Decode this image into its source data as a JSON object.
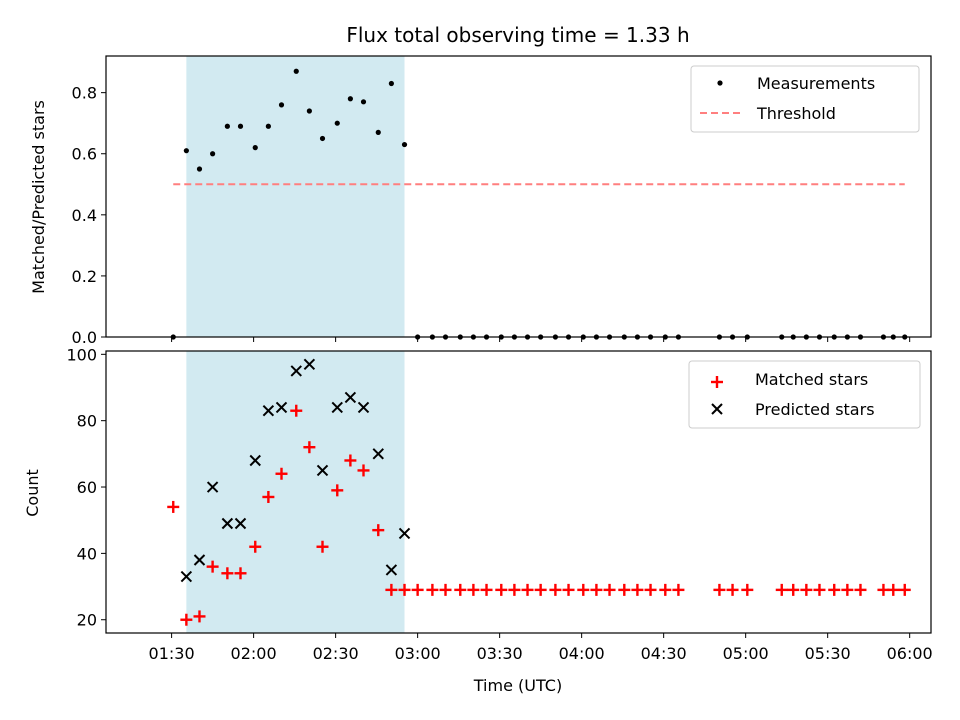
{
  "chart_data": {
    "type": "scatter",
    "title": "Flux total observing time = 1.33 h",
    "xlabel": "Time (UTC)",
    "xlim_hours": [
      1.1,
      6.13
    ],
    "x_ticks": [
      {
        "h": 1.5,
        "label": "01:30"
      },
      {
        "h": 2.0,
        "label": "02:00"
      },
      {
        "h": 2.5,
        "label": "02:30"
      },
      {
        "h": 3.0,
        "label": "03:00"
      },
      {
        "h": 3.5,
        "label": "03:30"
      },
      {
        "h": 4.0,
        "label": "04:00"
      },
      {
        "h": 4.5,
        "label": "04:30"
      },
      {
        "h": 5.0,
        "label": "05:00"
      },
      {
        "h": 5.5,
        "label": "05:30"
      },
      {
        "h": 6.0,
        "label": "06:00"
      }
    ],
    "shaded_span_hours": [
      1.59,
      2.92
    ],
    "shade_color": "#add8e6",
    "top": {
      "ylabel": "Matched/Predicted stars",
      "ylim": [
        0,
        0.92
      ],
      "yticks": [
        0.0,
        0.2,
        0.4,
        0.6,
        0.8
      ],
      "ytick_labels": [
        "0.0",
        "0.2",
        "0.4",
        "0.6",
        "0.8"
      ],
      "legend": {
        "location": "upper right",
        "entries": [
          "Measurements",
          "Threshold"
        ]
      },
      "measurements": {
        "name": "Measurements",
        "color": "#000000",
        "x": [
          1.51,
          1.59,
          1.67,
          1.75,
          1.84,
          1.92,
          2.01,
          2.09,
          2.17,
          2.26,
          2.34,
          2.42,
          2.51,
          2.59,
          2.67,
          2.76,
          2.84,
          2.92,
          3.0,
          3.09,
          3.17,
          3.26,
          3.34,
          3.42,
          3.51,
          3.59,
          3.67,
          3.75,
          3.84,
          3.92,
          4.01,
          4.09,
          4.17,
          4.26,
          4.34,
          4.42,
          4.51,
          4.59,
          4.84,
          4.92,
          5.01,
          5.22,
          5.29,
          5.37,
          5.45,
          5.54,
          5.62,
          5.7,
          5.84,
          5.9,
          5.97
        ],
        "y": [
          0.0,
          0.61,
          0.55,
          0.6,
          0.69,
          0.69,
          0.62,
          0.69,
          0.76,
          0.87,
          0.74,
          0.65,
          0.7,
          0.78,
          0.77,
          0.67,
          0.83,
          0.63,
          0.0,
          0.0,
          0.0,
          0.0,
          0.0,
          0.0,
          0.0,
          0.0,
          0.0,
          0.0,
          0.0,
          0.0,
          0.0,
          0.0,
          0.0,
          0.0,
          0.0,
          0.0,
          0.0,
          0.0,
          0.0,
          0.0,
          0.0,
          0.0,
          0.0,
          0.0,
          0.0,
          0.0,
          0.0,
          0.0,
          0.0,
          0.0,
          0.0
        ]
      },
      "threshold": {
        "name": "Threshold",
        "color": "#ff7f7f",
        "value": 0.5,
        "x_range": [
          1.51,
          5.97
        ]
      }
    },
    "bottom": {
      "ylabel": "Count",
      "ylim": [
        16,
        101
      ],
      "yticks": [
        20,
        40,
        60,
        80,
        100
      ],
      "ytick_labels": [
        "20",
        "40",
        "60",
        "80",
        "100"
      ],
      "legend": {
        "location": "upper right",
        "entries": [
          "Matched stars",
          "Predicted stars"
        ]
      },
      "matched": {
        "name": "Matched stars",
        "color": "#ff0000",
        "marker": "+",
        "x": [
          1.51,
          1.59,
          1.67,
          1.75,
          1.84,
          1.92,
          2.01,
          2.09,
          2.17,
          2.26,
          2.34,
          2.42,
          2.51,
          2.59,
          2.67,
          2.76,
          2.84,
          2.92,
          3.0,
          3.09,
          3.17,
          3.26,
          3.34,
          3.42,
          3.51,
          3.59,
          3.67,
          3.75,
          3.84,
          3.92,
          4.01,
          4.09,
          4.17,
          4.26,
          4.34,
          4.42,
          4.51,
          4.59,
          4.84,
          4.92,
          5.01,
          5.22,
          5.29,
          5.37,
          5.45,
          5.54,
          5.62,
          5.7,
          5.84,
          5.9,
          5.97
        ],
        "y": [
          54,
          20,
          21,
          36,
          34,
          34,
          42,
          57,
          64,
          83,
          72,
          42,
          59,
          68,
          65,
          47,
          29,
          29,
          29,
          29,
          29,
          29,
          29,
          29,
          29,
          29,
          29,
          29,
          29,
          29,
          29,
          29,
          29,
          29,
          29,
          29,
          29,
          29,
          29,
          29,
          29,
          29,
          29,
          29,
          29,
          29,
          29,
          29,
          29,
          29,
          29
        ]
      },
      "predicted": {
        "name": "Predicted stars",
        "color": "#000000",
        "marker": "x",
        "x": [
          1.59,
          1.67,
          1.75,
          1.84,
          1.92,
          2.01,
          2.09,
          2.17,
          2.26,
          2.34,
          2.42,
          2.51,
          2.59,
          2.67,
          2.76,
          2.84,
          2.92
        ],
        "y": [
          33,
          38,
          60,
          49,
          49,
          68,
          83,
          84,
          95,
          97,
          65,
          84,
          87,
          84,
          70,
          35,
          46
        ]
      }
    }
  }
}
